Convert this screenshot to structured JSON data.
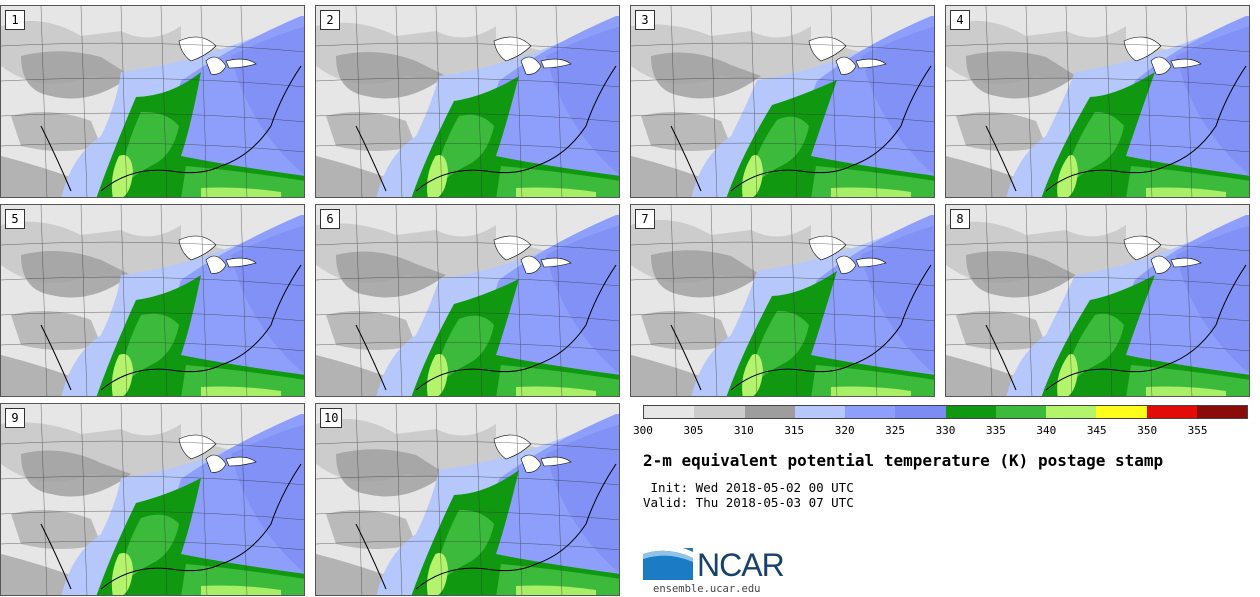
{
  "panels": [
    {
      "label": "1"
    },
    {
      "label": "2"
    },
    {
      "label": "3"
    },
    {
      "label": "4"
    },
    {
      "label": "5"
    },
    {
      "label": "6"
    },
    {
      "label": "7"
    },
    {
      "label": "8"
    },
    {
      "label": "9"
    },
    {
      "label": "10"
    }
  ],
  "colorbar": {
    "ticks": [
      "300",
      "305",
      "310",
      "315",
      "320",
      "325",
      "330",
      "335",
      "340",
      "345",
      "350",
      "355"
    ],
    "colors": [
      "#e6e6e6",
      "#cccccc",
      "#9d9d9d",
      "#b5c7fb",
      "#8d9ffa",
      "#7c8cf2",
      "#109910",
      "#3cba3c",
      "#b4f46c",
      "#fdfc1b",
      "#e30a0a",
      "#8b0a0a"
    ]
  },
  "title": "2-m equivalent potential temperature (K) postage stamp",
  "init": " Init: Wed 2018-05-02 00 UTC",
  "valid": "Valid: Thu 2018-05-03 07 UTC",
  "logo": {
    "text": "NCAR",
    "url": "ensemble.ucar.edu"
  }
}
